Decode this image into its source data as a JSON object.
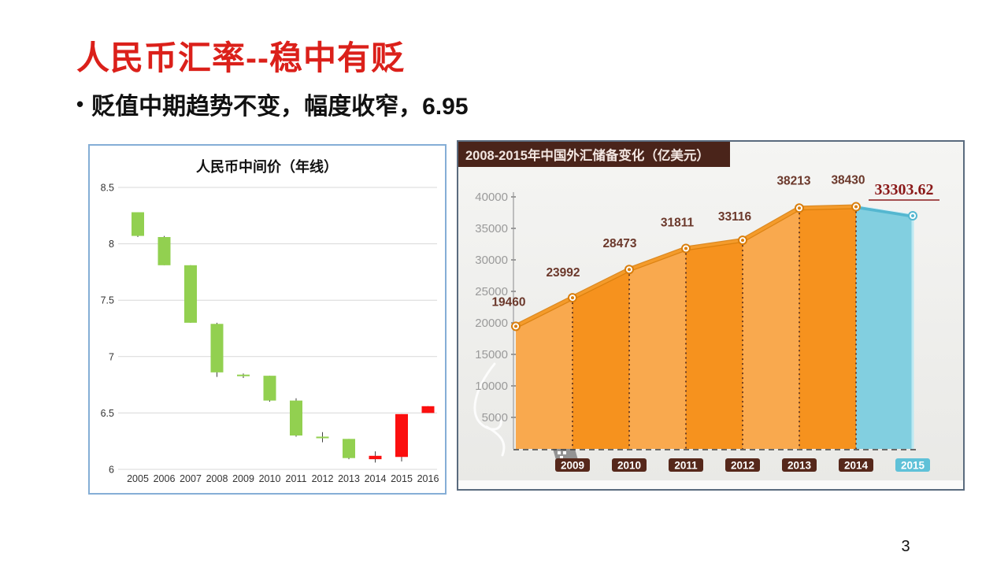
{
  "slide": {
    "title": "人民币汇率--稳中有贬",
    "bullet": "贬值中期趋势不变，幅度收窄，6.95",
    "page_number": "3",
    "accent_red": "#DB201A"
  },
  "chart_data": [
    {
      "type": "candlestick",
      "title": "人民币中间价（年线）",
      "ylim": [
        6,
        8.5
      ],
      "yticks": [
        "8.5",
        "8",
        "7.5",
        "7",
        "6.5",
        "6"
      ],
      "grid": true,
      "legend": "none",
      "candles": [
        {
          "year": "2005",
          "open": 8.28,
          "high": 8.28,
          "low": 8.06,
          "close": 8.07,
          "dir": "down"
        },
        {
          "year": "2006",
          "open": 8.06,
          "high": 8.07,
          "low": 7.81,
          "close": 7.81,
          "dir": "down"
        },
        {
          "year": "2007",
          "open": 7.81,
          "high": 7.81,
          "low": 7.3,
          "close": 7.3,
          "dir": "down"
        },
        {
          "year": "2008",
          "open": 7.29,
          "high": 7.3,
          "low": 6.82,
          "close": 6.86,
          "dir": "down"
        },
        {
          "year": "2009",
          "open": 6.84,
          "high": 6.85,
          "low": 6.81,
          "close": 6.83,
          "dir": "down"
        },
        {
          "year": "2010",
          "open": 6.83,
          "high": 6.83,
          "low": 6.6,
          "close": 6.61,
          "dir": "down"
        },
        {
          "year": "2011",
          "open": 6.61,
          "high": 6.63,
          "low": 6.29,
          "close": 6.3,
          "dir": "down"
        },
        {
          "year": "2012",
          "open": 6.29,
          "high": 6.33,
          "low": 6.24,
          "close": 6.28,
          "dir": "down"
        },
        {
          "year": "2013",
          "open": 6.27,
          "high": 6.27,
          "low": 6.09,
          "close": 6.1,
          "dir": "down"
        },
        {
          "year": "2014",
          "open": 6.09,
          "high": 6.16,
          "low": 6.06,
          "close": 6.12,
          "dir": "up"
        },
        {
          "year": "2015",
          "open": 6.11,
          "high": 6.49,
          "low": 6.07,
          "close": 6.49,
          "dir": "up"
        },
        {
          "year": "2016",
          "open": 6.5,
          "high": 6.56,
          "low": 6.5,
          "close": 6.56,
          "dir": "up"
        }
      ],
      "colors": {
        "down": "#92D050",
        "up": "#FB0F0F",
        "wick": "#404040",
        "grid": "#D8D8D8",
        "text": "#333333"
      }
    },
    {
      "type": "area",
      "title": "2008-2015年中国外汇储备变化（亿美元）",
      "x": [
        "2008",
        "2009",
        "2010",
        "2011",
        "2012",
        "2013",
        "2014",
        "2015"
      ],
      "values": [
        19460,
        23992,
        28473,
        31811,
        33116,
        38213,
        38430,
        33303.62
      ],
      "value_labels": [
        "19460",
        "23992",
        "28473",
        "31811",
        "33116",
        "38213",
        "38430",
        "33303.62"
      ],
      "ylim": [
        0,
        40000
      ],
      "yticks": [
        "40000",
        "35000",
        "30000",
        "25000",
        "20000",
        "15000",
        "10000",
        "5000"
      ],
      "note": "final 2015 segment is drawn not-to-scale in the source image (only a slight visual dip)",
      "colors": {
        "band_light": "#F9A94E",
        "band_dark": "#F6921E",
        "line": "#D97E0C",
        "line_hi": "#F49B2B",
        "highlight_fill": "#82CFE0",
        "highlight_line": "#54B7D0",
        "highlight_edge": "#BDE9F2",
        "axis_text": "#9A9A9A",
        "axis_line": "#BDBDBD",
        "label_text": "#6B382B",
        "final_label": "#8B1A1A",
        "x_box": "#56281B",
        "x_box_highlight": "#5FC1D8",
        "dots": "#6E3E22",
        "baseline": "#3F3F3F",
        "title_bg": "#4A241A",
        "title_text": "#F3E7E2",
        "plot_bg_top": "#F5F5F3",
        "plot_bg_bottom": "#E9E9E6"
      }
    }
  ]
}
